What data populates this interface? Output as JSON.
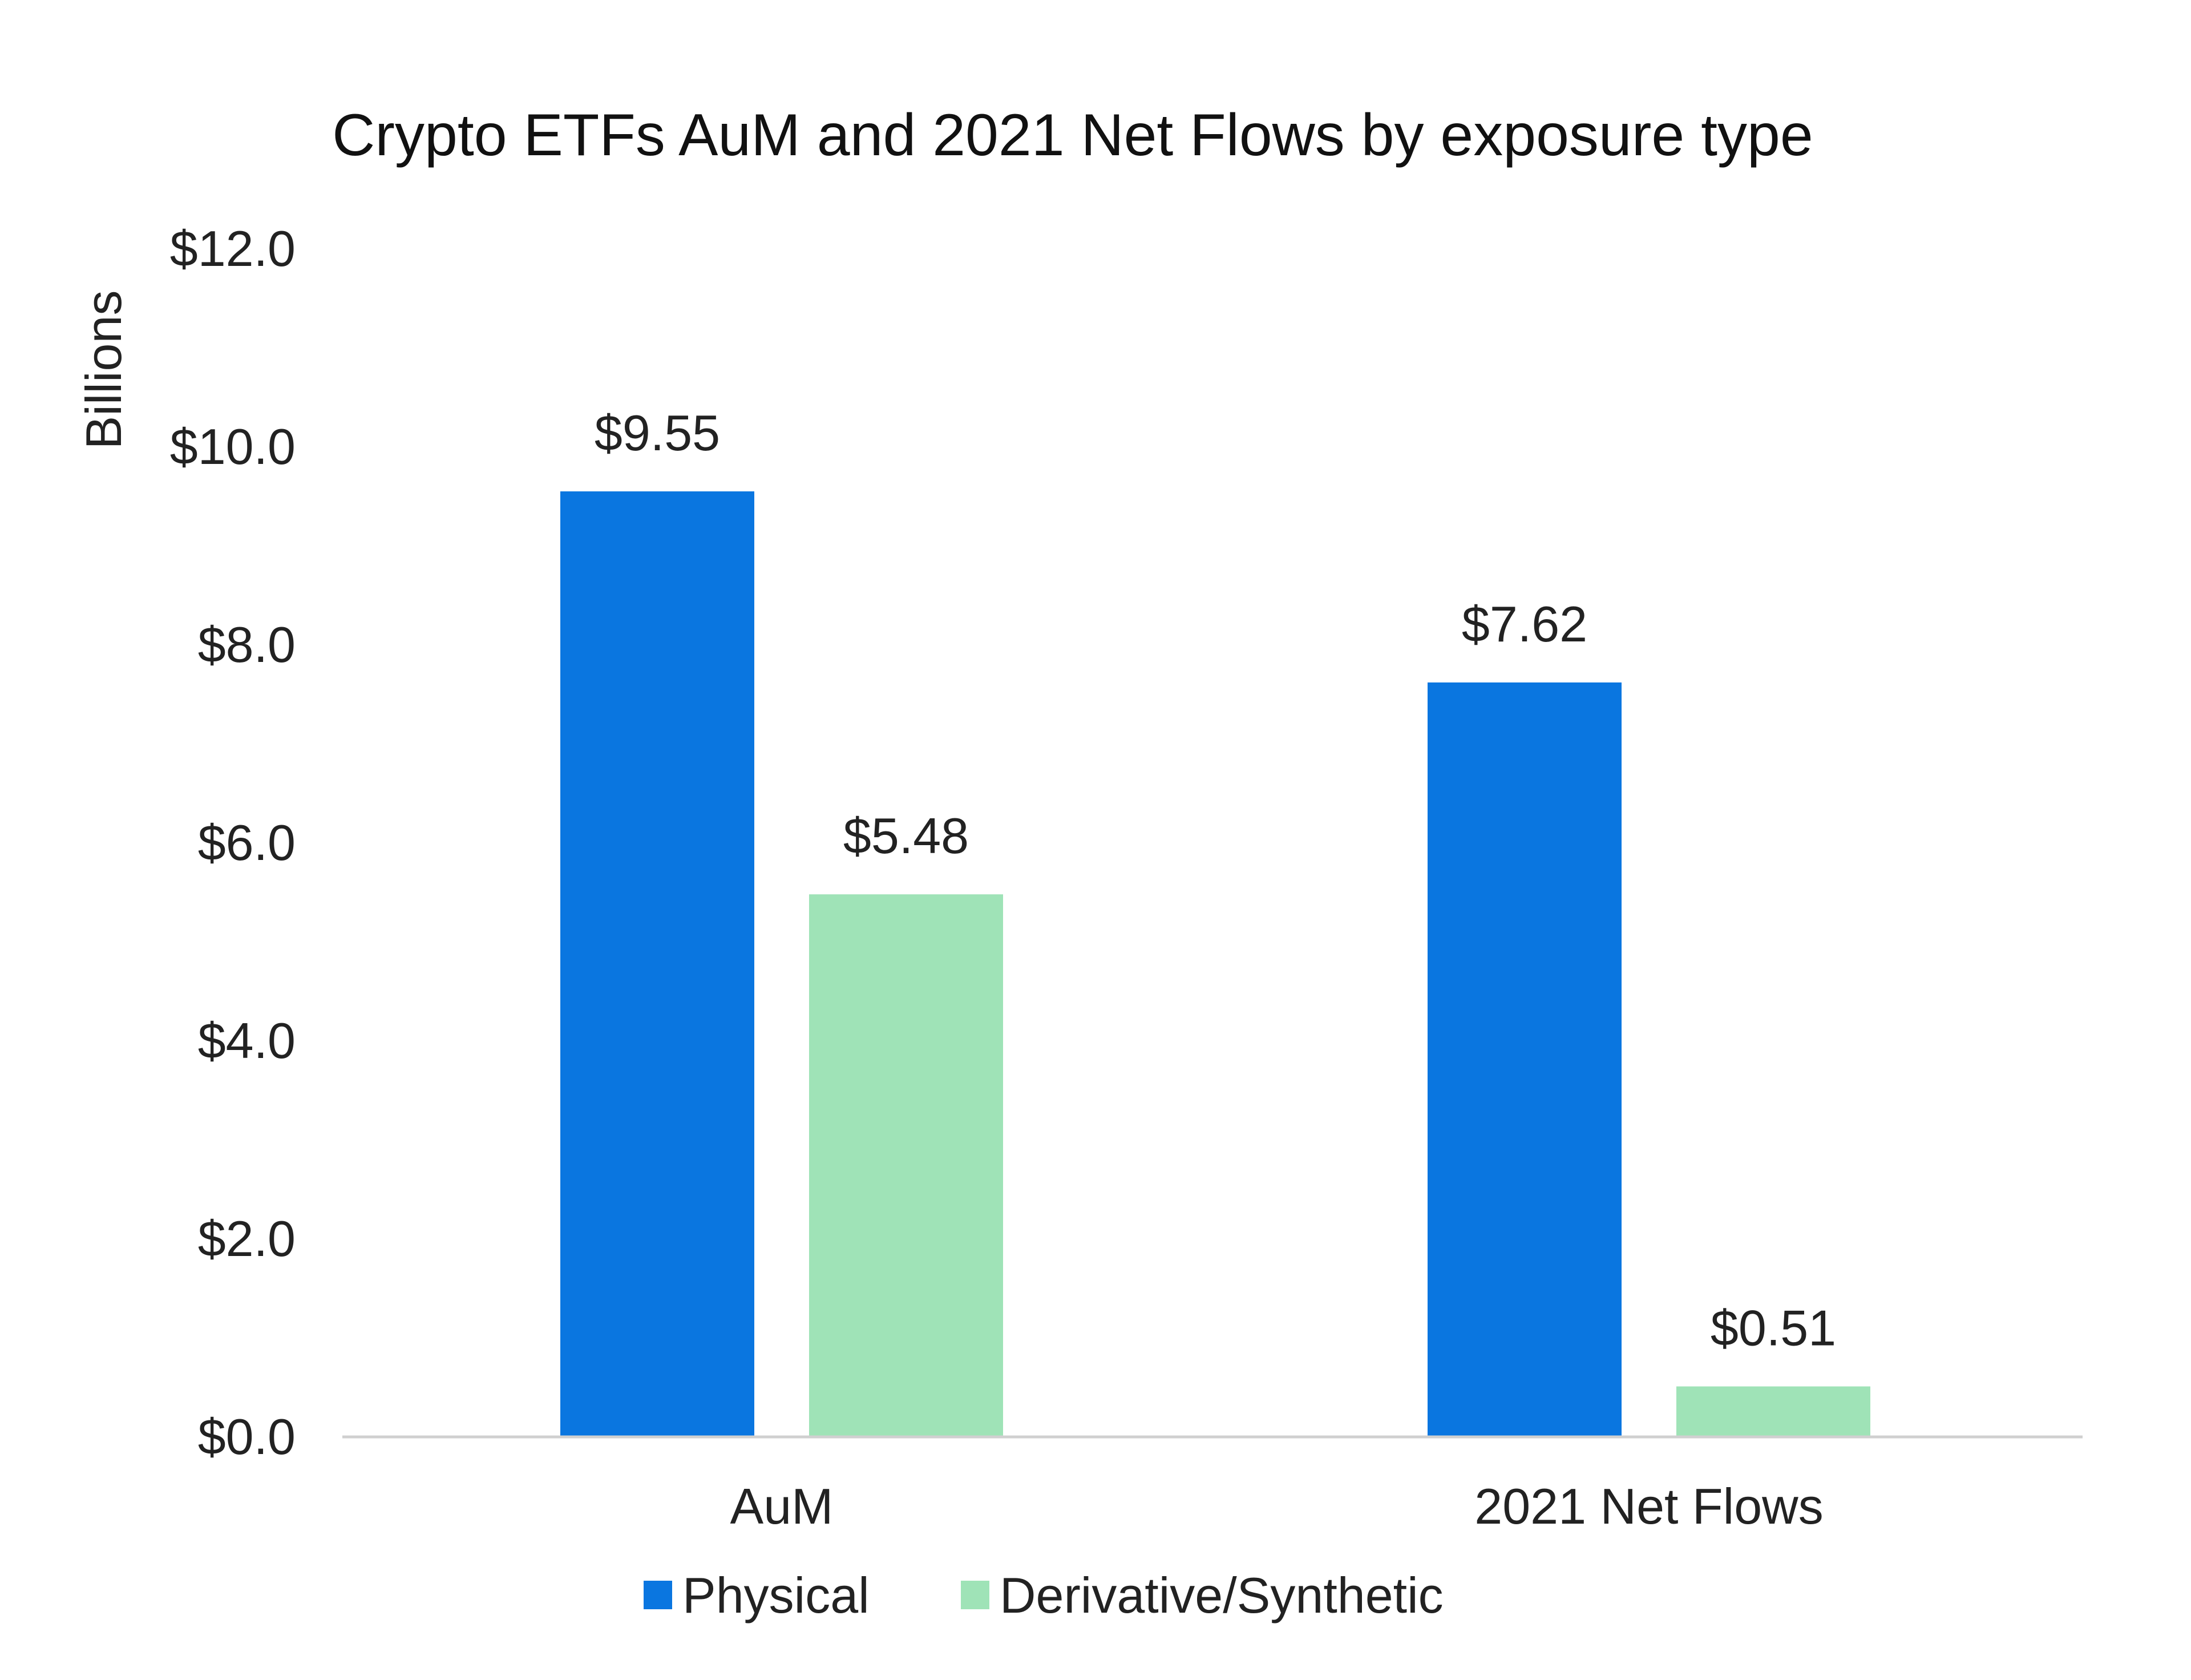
{
  "chart_data": {
    "type": "bar",
    "title": "Crypto ETFs AuM and 2021 Net Flows by exposure type",
    "ylabel": "Billions",
    "xlabel": "",
    "categories": [
      "AuM",
      "2021 Net Flows"
    ],
    "series": [
      {
        "name": "Physical",
        "values": [
          9.55,
          7.62
        ],
        "color": "#0a76e0",
        "data_labels": [
          "$9.55",
          "$7.62"
        ]
      },
      {
        "name": "Derivative/Synthetic",
        "values": [
          5.48,
          0.51
        ],
        "color": "#9fe3b7",
        "data_labels": [
          "$5.48",
          "$0.51"
        ]
      }
    ],
    "ylim": [
      0,
      12
    ],
    "yticks": [
      0,
      2,
      4,
      6,
      8,
      10,
      12
    ],
    "ytick_labels": [
      "$0.0",
      "$2.0",
      "$4.0",
      "$6.0",
      "$8.0",
      "$10.0",
      "$12.0"
    ],
    "grid": false,
    "legend_position": "bottom"
  }
}
